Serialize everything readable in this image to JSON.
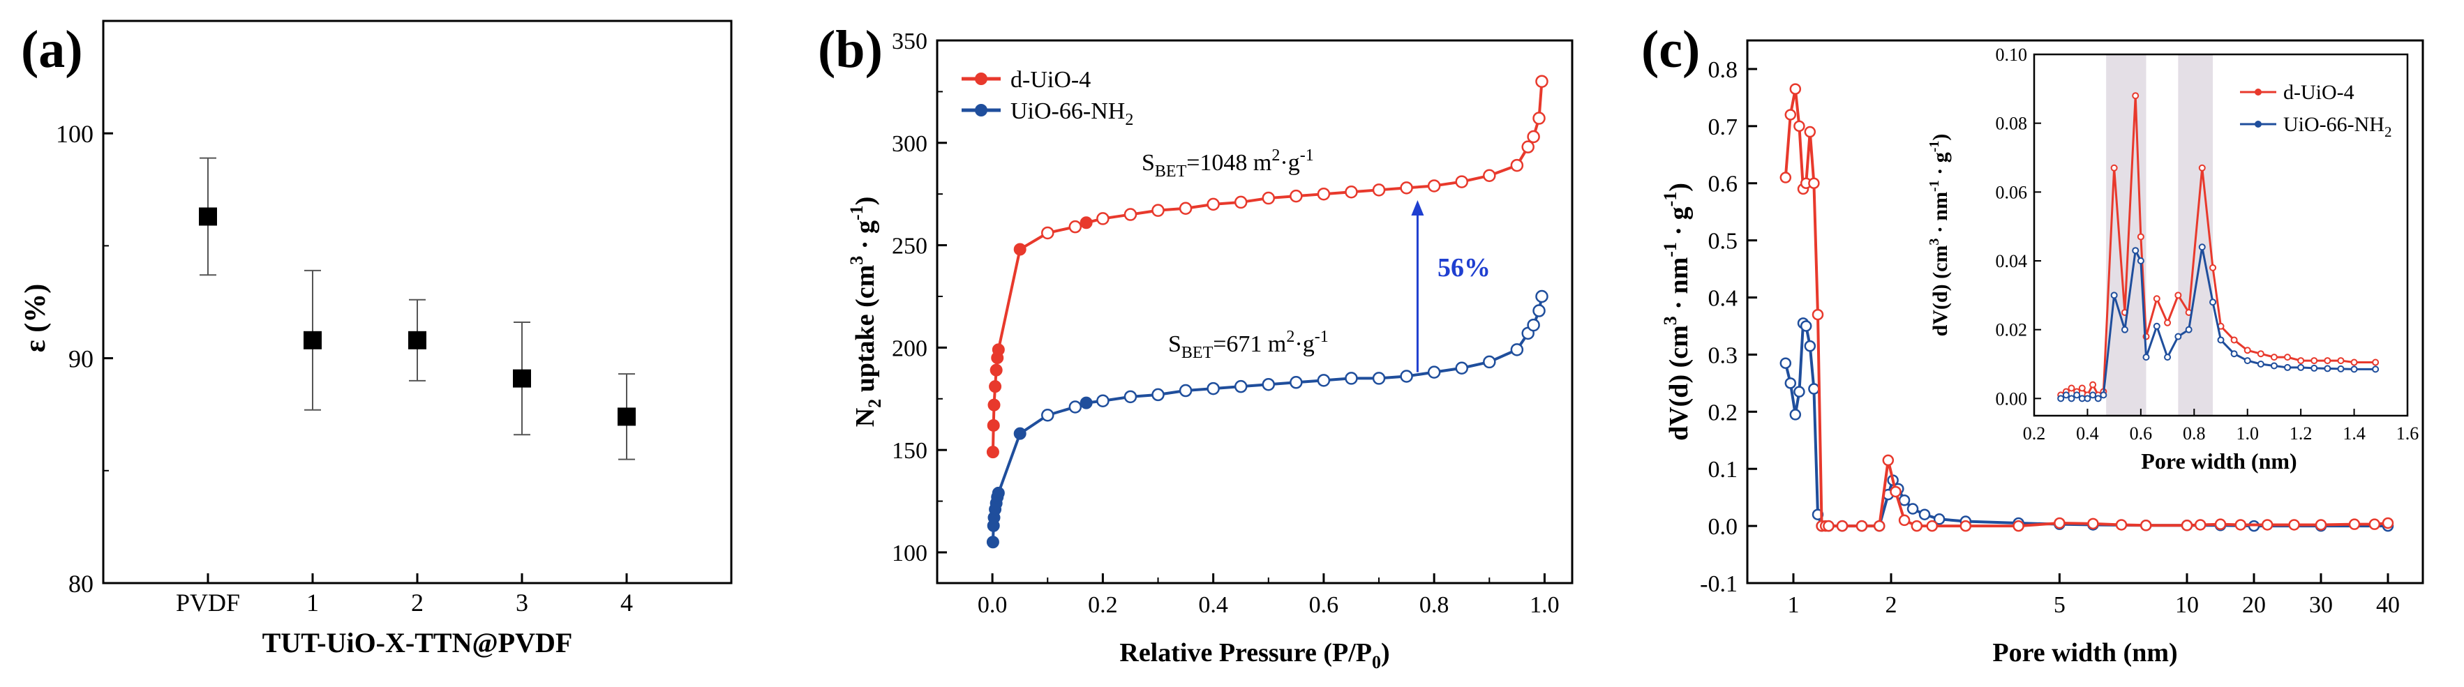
{
  "chart_data": [
    {
      "panel_label": "(a)",
      "type": "scatter",
      "xlabel": "TUT-UiO-X-TTN@PVDF",
      "ylabel": "ε (%)",
      "categories": [
        "PVDF",
        "1",
        "2",
        "3",
        "4"
      ],
      "values": [
        96.3,
        90.8,
        90.8,
        89.1,
        87.4
      ],
      "error": [
        2.6,
        3.1,
        1.8,
        2.5,
        1.9
      ],
      "yticks": [
        "80",
        "90",
        "100"
      ],
      "ylim": [
        80,
        105
      ],
      "marker_color": "#000000"
    },
    {
      "panel_label": "(b)",
      "type": "line",
      "xlabel": "Relative Pressure (P/P",
      "xlabel_sub": "0",
      "xlabel_end": ")",
      "ylabel_pre": "N",
      "ylabel_sub": "2",
      "ylabel_main": " uptake (cm",
      "ylabel_sup3": "3",
      "ylabel_mid": " · g",
      "ylabel_sup1": "-1",
      "ylabel_end": ")",
      "xlim": [
        -0.1,
        1.05
      ],
      "ylim": [
        85,
        350
      ],
      "xticks": [
        "0.0",
        "0.2",
        "0.4",
        "0.6",
        "0.8",
        "1.0"
      ],
      "yticks": [
        "100",
        "150",
        "200",
        "250",
        "300",
        "350"
      ],
      "legend": {
        "position": "top-left",
        "entries": [
          "d-UiO-4",
          "UiO-66-NH",
          "2"
        ]
      },
      "series": [
        {
          "name": "d-UiO-4",
          "color": "#e8392c",
          "adsorption": {
            "x": [
              0.001,
              0.002,
              0.003,
              0.005,
              0.007,
              0.009,
              0.011,
              0.05,
              0.17
            ],
            "y": [
              149,
              162,
              172,
              181,
              189,
              195,
              199,
              248,
              261
            ]
          },
          "desorption": {
            "x": [
              0.1,
              0.15,
              0.2,
              0.25,
              0.3,
              0.35,
              0.4,
              0.45,
              0.5,
              0.55,
              0.6,
              0.65,
              0.7,
              0.75,
              0.8,
              0.85,
              0.9,
              0.95,
              0.97,
              0.98,
              0.99,
              0.995
            ],
            "y": [
              256,
              259,
              263,
              265,
              267,
              268,
              270,
              271,
              273,
              274,
              275,
              276,
              277,
              278,
              279,
              281,
              284,
              289,
              298,
              303,
              312,
              330
            ]
          }
        },
        {
          "name": "UiO-66-NH2",
          "color": "#1f4e9c",
          "adsorption": {
            "x": [
              0.001,
              0.002,
              0.003,
              0.005,
              0.007,
              0.009,
              0.011,
              0.05,
              0.17
            ],
            "y": [
              105,
              113,
              117,
              121,
              124,
              127,
              129,
              158,
              173
            ]
          },
          "desorption": {
            "x": [
              0.1,
              0.15,
              0.2,
              0.25,
              0.3,
              0.35,
              0.4,
              0.45,
              0.5,
              0.55,
              0.6,
              0.65,
              0.7,
              0.75,
              0.8,
              0.85,
              0.9,
              0.95,
              0.97,
              0.98,
              0.99,
              0.995
            ],
            "y": [
              167,
              171,
              174,
              176,
              177,
              179,
              180,
              181,
              182,
              183,
              184,
              185,
              185,
              186,
              188,
              190,
              193,
              199,
              207,
              211,
              218,
              225
            ]
          }
        }
      ],
      "annotations": {
        "bet_red_pre": "S",
        "bet_red_sub": "BET",
        "bet_red_val": "=1048 m",
        "bet_red_sup2": "2",
        "bet_red_mid": "·g",
        "bet_red_sup1": "-1",
        "bet_blue_pre": "S",
        "bet_blue_sub": "BET",
        "bet_blue_val": "=671 m",
        "bet_blue_sup2": "2",
        "bet_blue_mid": "·g",
        "bet_blue_sup1": "-1",
        "increase": "56%",
        "arrow_x": 0.77,
        "arrow_y_from": 188,
        "arrow_y_to": 272
      }
    },
    {
      "panel_label": "(c)",
      "type": "line",
      "xlabel": "Pore width (nm)",
      "ylabel_main": "dV(d) (cm",
      "ylabel_sup3": "3",
      "ylabel_mid": " · nm",
      "ylabel_sup_a": "-1",
      "ylabel_mid2": " · g",
      "ylabel_sup_b": "-1",
      "ylabel_end": ")",
      "ylim": [
        -0.1,
        0.85
      ],
      "yticks": [
        "-0.1",
        "0.0",
        "0.1",
        "0.2",
        "0.3",
        "0.4",
        "0.5",
        "0.6",
        "0.7",
        "0.8"
      ],
      "xticks": [
        {
          "label": "1",
          "value": 1
        },
        {
          "label": "2",
          "value": 2
        },
        {
          "label": "5",
          "value": 5
        },
        {
          "label": "10",
          "value": 10
        },
        {
          "label": "20",
          "value": 20
        },
        {
          "label": "30",
          "value": 30
        },
        {
          "label": "40",
          "value": 40
        }
      ],
      "series": [
        {
          "name": "d-UiO-4",
          "color": "#e8392c",
          "x": [
            0.92,
            0.97,
            1.02,
            1.06,
            1.1,
            1.13,
            1.17,
            1.21,
            1.25,
            1.29,
            1.33,
            1.36,
            1.5,
            1.7,
            1.88,
            1.97,
            2.05,
            2.15,
            2.3,
            2.5,
            3,
            4,
            5,
            6,
            7,
            8,
            10,
            12,
            15,
            18,
            22,
            26,
            30,
            35,
            38,
            40
          ],
          "y": [
            0.61,
            0.72,
            0.765,
            0.7,
            0.59,
            0.6,
            0.69,
            0.6,
            0.37,
            0.0,
            0.0,
            0.0,
            0.0,
            0.0,
            0.0,
            0.115,
            0.06,
            0.01,
            0.0,
            0.0,
            0.0,
            0.0,
            0.005,
            0.004,
            0.002,
            0.001,
            0.001,
            0.002,
            0.003,
            0.002,
            0.002,
            0.002,
            0.002,
            0.003,
            0.003,
            0.005
          ]
        },
        {
          "name": "UiO-66-NH2",
          "color": "#1f4e9c",
          "x": [
            0.92,
            0.97,
            1.02,
            1.06,
            1.1,
            1.13,
            1.17,
            1.21,
            1.25,
            1.29,
            1.36,
            1.5,
            1.7,
            1.88,
            1.97,
            2.02,
            2.08,
            2.15,
            2.25,
            2.4,
            2.6,
            3,
            4,
            5,
            6,
            8,
            10,
            15,
            20,
            30,
            40
          ],
          "y": [
            0.285,
            0.25,
            0.195,
            0.235,
            0.355,
            0.35,
            0.315,
            0.24,
            0.02,
            0.0,
            0.0,
            0.0,
            0.0,
            0.0,
            0.055,
            0.08,
            0.065,
            0.045,
            0.03,
            0.02,
            0.012,
            0.008,
            0.005,
            0.003,
            0.002,
            0.001,
            0.001,
            0.001,
            0.0,
            0.0,
            0.0
          ]
        }
      ],
      "inset": {
        "xlabel": "Pore width (nm)",
        "ylabel_main": "dV(d) (cm",
        "ylabel_sup3": "3",
        "ylabel_mid": " · nm",
        "ylabel_sup_a": "-1",
        "ylabel_mid2": " · g",
        "ylabel_sup_b": "-1",
        "ylabel_end": ")",
        "xlim": [
          0.2,
          1.6
        ],
        "ylim": [
          -0.005,
          0.1
        ],
        "xticks": [
          "0.2",
          "0.4",
          "0.6",
          "0.8",
          "1.0",
          "1.2",
          "1.4",
          "1.6"
        ],
        "yticks": [
          "0.00",
          "0.02",
          "0.04",
          "0.06",
          "0.08",
          "0.10"
        ],
        "shaded_bands": [
          [
            0.47,
            0.62
          ],
          [
            0.74,
            0.87
          ]
        ],
        "legend": {
          "position": "top-right",
          "entries": [
            "d-UiO-4",
            "UiO-66-NH",
            "2"
          ]
        },
        "series": [
          {
            "name": "d-UiO-4",
            "color": "#e8392c",
            "x": [
              0.3,
              0.32,
              0.34,
              0.36,
              0.38,
              0.4,
              0.42,
              0.44,
              0.46,
              0.5,
              0.54,
              0.58,
              0.6,
              0.62,
              0.66,
              0.7,
              0.74,
              0.78,
              0.83,
              0.87,
              0.9,
              0.95,
              1.0,
              1.05,
              1.1,
              1.15,
              1.2,
              1.25,
              1.3,
              1.35,
              1.4,
              1.48
            ],
            "y": [
              0.001,
              0.002,
              0.003,
              0.002,
              0.003,
              0.001,
              0.004,
              0.001,
              0.002,
              0.067,
              0.025,
              0.088,
              0.047,
              0.018,
              0.029,
              0.022,
              0.03,
              0.025,
              0.067,
              0.038,
              0.021,
              0.017,
              0.014,
              0.013,
              0.012,
              0.012,
              0.011,
              0.011,
              0.011,
              0.011,
              0.0105,
              0.0105
            ]
          },
          {
            "name": "UiO-66-NH2",
            "color": "#1f4e9c",
            "x": [
              0.3,
              0.32,
              0.34,
              0.36,
              0.38,
              0.4,
              0.42,
              0.44,
              0.46,
              0.5,
              0.54,
              0.58,
              0.6,
              0.62,
              0.66,
              0.7,
              0.74,
              0.78,
              0.83,
              0.87,
              0.9,
              0.95,
              1.0,
              1.05,
              1.1,
              1.15,
              1.2,
              1.25,
              1.3,
              1.35,
              1.4,
              1.48
            ],
            "y": [
              0.0,
              0.001,
              0.0,
              0.001,
              0.0,
              0.0,
              0.001,
              0.0,
              0.001,
              0.03,
              0.02,
              0.043,
              0.04,
              0.012,
              0.021,
              0.012,
              0.018,
              0.02,
              0.044,
              0.028,
              0.017,
              0.013,
              0.011,
              0.01,
              0.0095,
              0.009,
              0.009,
              0.0088,
              0.0087,
              0.0086,
              0.0085,
              0.0085
            ]
          }
        ]
      }
    }
  ]
}
